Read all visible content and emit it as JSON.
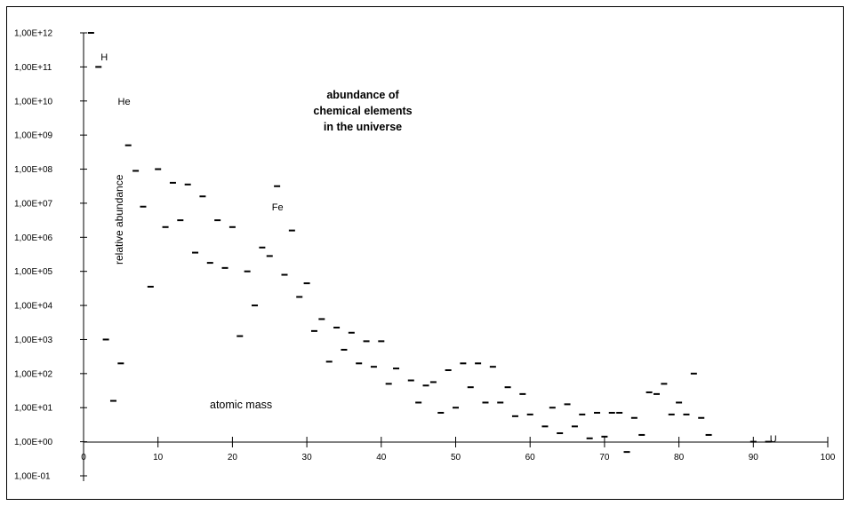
{
  "chart_data": {
    "type": "scatter",
    "title_lines": [
      "abundance of",
      "chemical elements",
      "in the universe"
    ],
    "xlabel": "atomic mass",
    "ylabel": "relative abundance",
    "xlim": [
      0,
      100
    ],
    "ylim_log10": [
      -1,
      12
    ],
    "y_scale": "log",
    "grid": false,
    "x_ticks": [
      {
        "value": 0,
        "label": "0"
      },
      {
        "value": 10,
        "label": "10"
      },
      {
        "value": 20,
        "label": "20"
      },
      {
        "value": 30,
        "label": "30"
      },
      {
        "value": 40,
        "label": "40"
      },
      {
        "value": 50,
        "label": "50"
      },
      {
        "value": 60,
        "label": "60"
      },
      {
        "value": 70,
        "label": "70"
      },
      {
        "value": 80,
        "label": "80"
      },
      {
        "value": 90,
        "label": "90"
      },
      {
        "value": 100,
        "label": "100"
      }
    ],
    "y_ticks": [
      {
        "exp": 12,
        "label": "1,00E+12"
      },
      {
        "exp": 11,
        "label": "1,00E+11"
      },
      {
        "exp": 10,
        "label": "1,00E+10"
      },
      {
        "exp": 9,
        "label": "1,00E+09"
      },
      {
        "exp": 8,
        "label": "1,00E+08"
      },
      {
        "exp": 7,
        "label": "1,00E+07"
      },
      {
        "exp": 6,
        "label": "1,00E+06"
      },
      {
        "exp": 5,
        "label": "1,00E+05"
      },
      {
        "exp": 4,
        "label": "1,00E+04"
      },
      {
        "exp": 3,
        "label": "1,00E+03"
      },
      {
        "exp": 2,
        "label": "1,00E+02"
      },
      {
        "exp": 1,
        "label": "1,00E+01"
      },
      {
        "exp": 0,
        "label": "1,00E+00"
      },
      {
        "exp": -1,
        "label": "1,00E-01"
      }
    ],
    "annotations": [
      {
        "text": "H",
        "x": 2.3,
        "log10_y": 11.3
      },
      {
        "text": "He",
        "x": 4.6,
        "log10_y": 10.0
      },
      {
        "text": "Fe",
        "x": 25.3,
        "log10_y": 6.9
      },
      {
        "text": "U",
        "x": 92.2,
        "log10_y": 0.1
      }
    ],
    "series": [
      {
        "x": [
          1.0,
          2.0,
          3.0,
          4.0,
          5.0,
          6.0,
          7.0,
          8.0,
          9.0,
          10.0,
          11.0,
          12.0,
          13.0,
          14.0,
          15.0,
          16.0,
          17.0,
          18.0,
          19.0,
          20.0,
          21.0,
          22.0,
          23.0,
          24.0,
          25.0,
          26.0,
          27.0,
          28.0,
          29.0,
          30.0,
          31.0,
          32.0,
          33.0,
          34.0,
          35.0,
          36.0,
          37.0,
          38.0,
          39.0,
          40.0,
          41.0,
          42.0,
          44.0,
          45.0,
          46.0,
          47.0,
          48.0,
          49.0,
          50.0,
          51.0,
          52.0,
          53.0,
          54.0,
          55.0,
          56.0,
          57.0,
          58.0,
          59.0,
          60.0,
          62.0,
          63.0,
          64.0,
          65.0,
          66.0,
          67.0,
          68.0,
          69.0,
          70.0,
          71.0,
          72.0,
          73.0,
          74.0,
          75.0,
          76.0,
          77.0,
          78.0,
          79.0,
          80.0,
          81.0,
          82.0,
          83.0,
          84.0,
          90.0,
          92.0
        ],
        "log10_y": [
          12.0,
          11.0,
          3.0,
          1.2,
          2.3,
          8.7,
          7.95,
          6.9,
          4.55,
          8.0,
          6.3,
          7.6,
          6.5,
          7.55,
          5.55,
          7.2,
          5.25,
          6.5,
          5.1,
          6.3,
          3.1,
          5.0,
          4.0,
          5.7,
          5.45,
          7.5,
          4.9,
          6.2,
          4.25,
          4.65,
          3.25,
          3.6,
          2.35,
          3.35,
          2.7,
          3.2,
          2.3,
          2.95,
          2.2,
          2.95,
          1.7,
          2.15,
          1.8,
          1.15,
          1.65,
          1.75,
          0.85,
          2.1,
          1.0,
          2.3,
          1.6,
          2.3,
          1.15,
          2.2,
          1.15,
          1.6,
          0.75,
          1.4,
          0.8,
          0.45,
          1.0,
          0.25,
          1.1,
          0.45,
          0.8,
          0.1,
          0.85,
          0.15,
          0.85,
          0.85,
          -0.3,
          0.7,
          0.2,
          1.45,
          1.4,
          1.7,
          0.8,
          1.15,
          0.8,
          2.0,
          0.7,
          0.2,
          0.0,
          0.0
        ]
      }
    ]
  }
}
